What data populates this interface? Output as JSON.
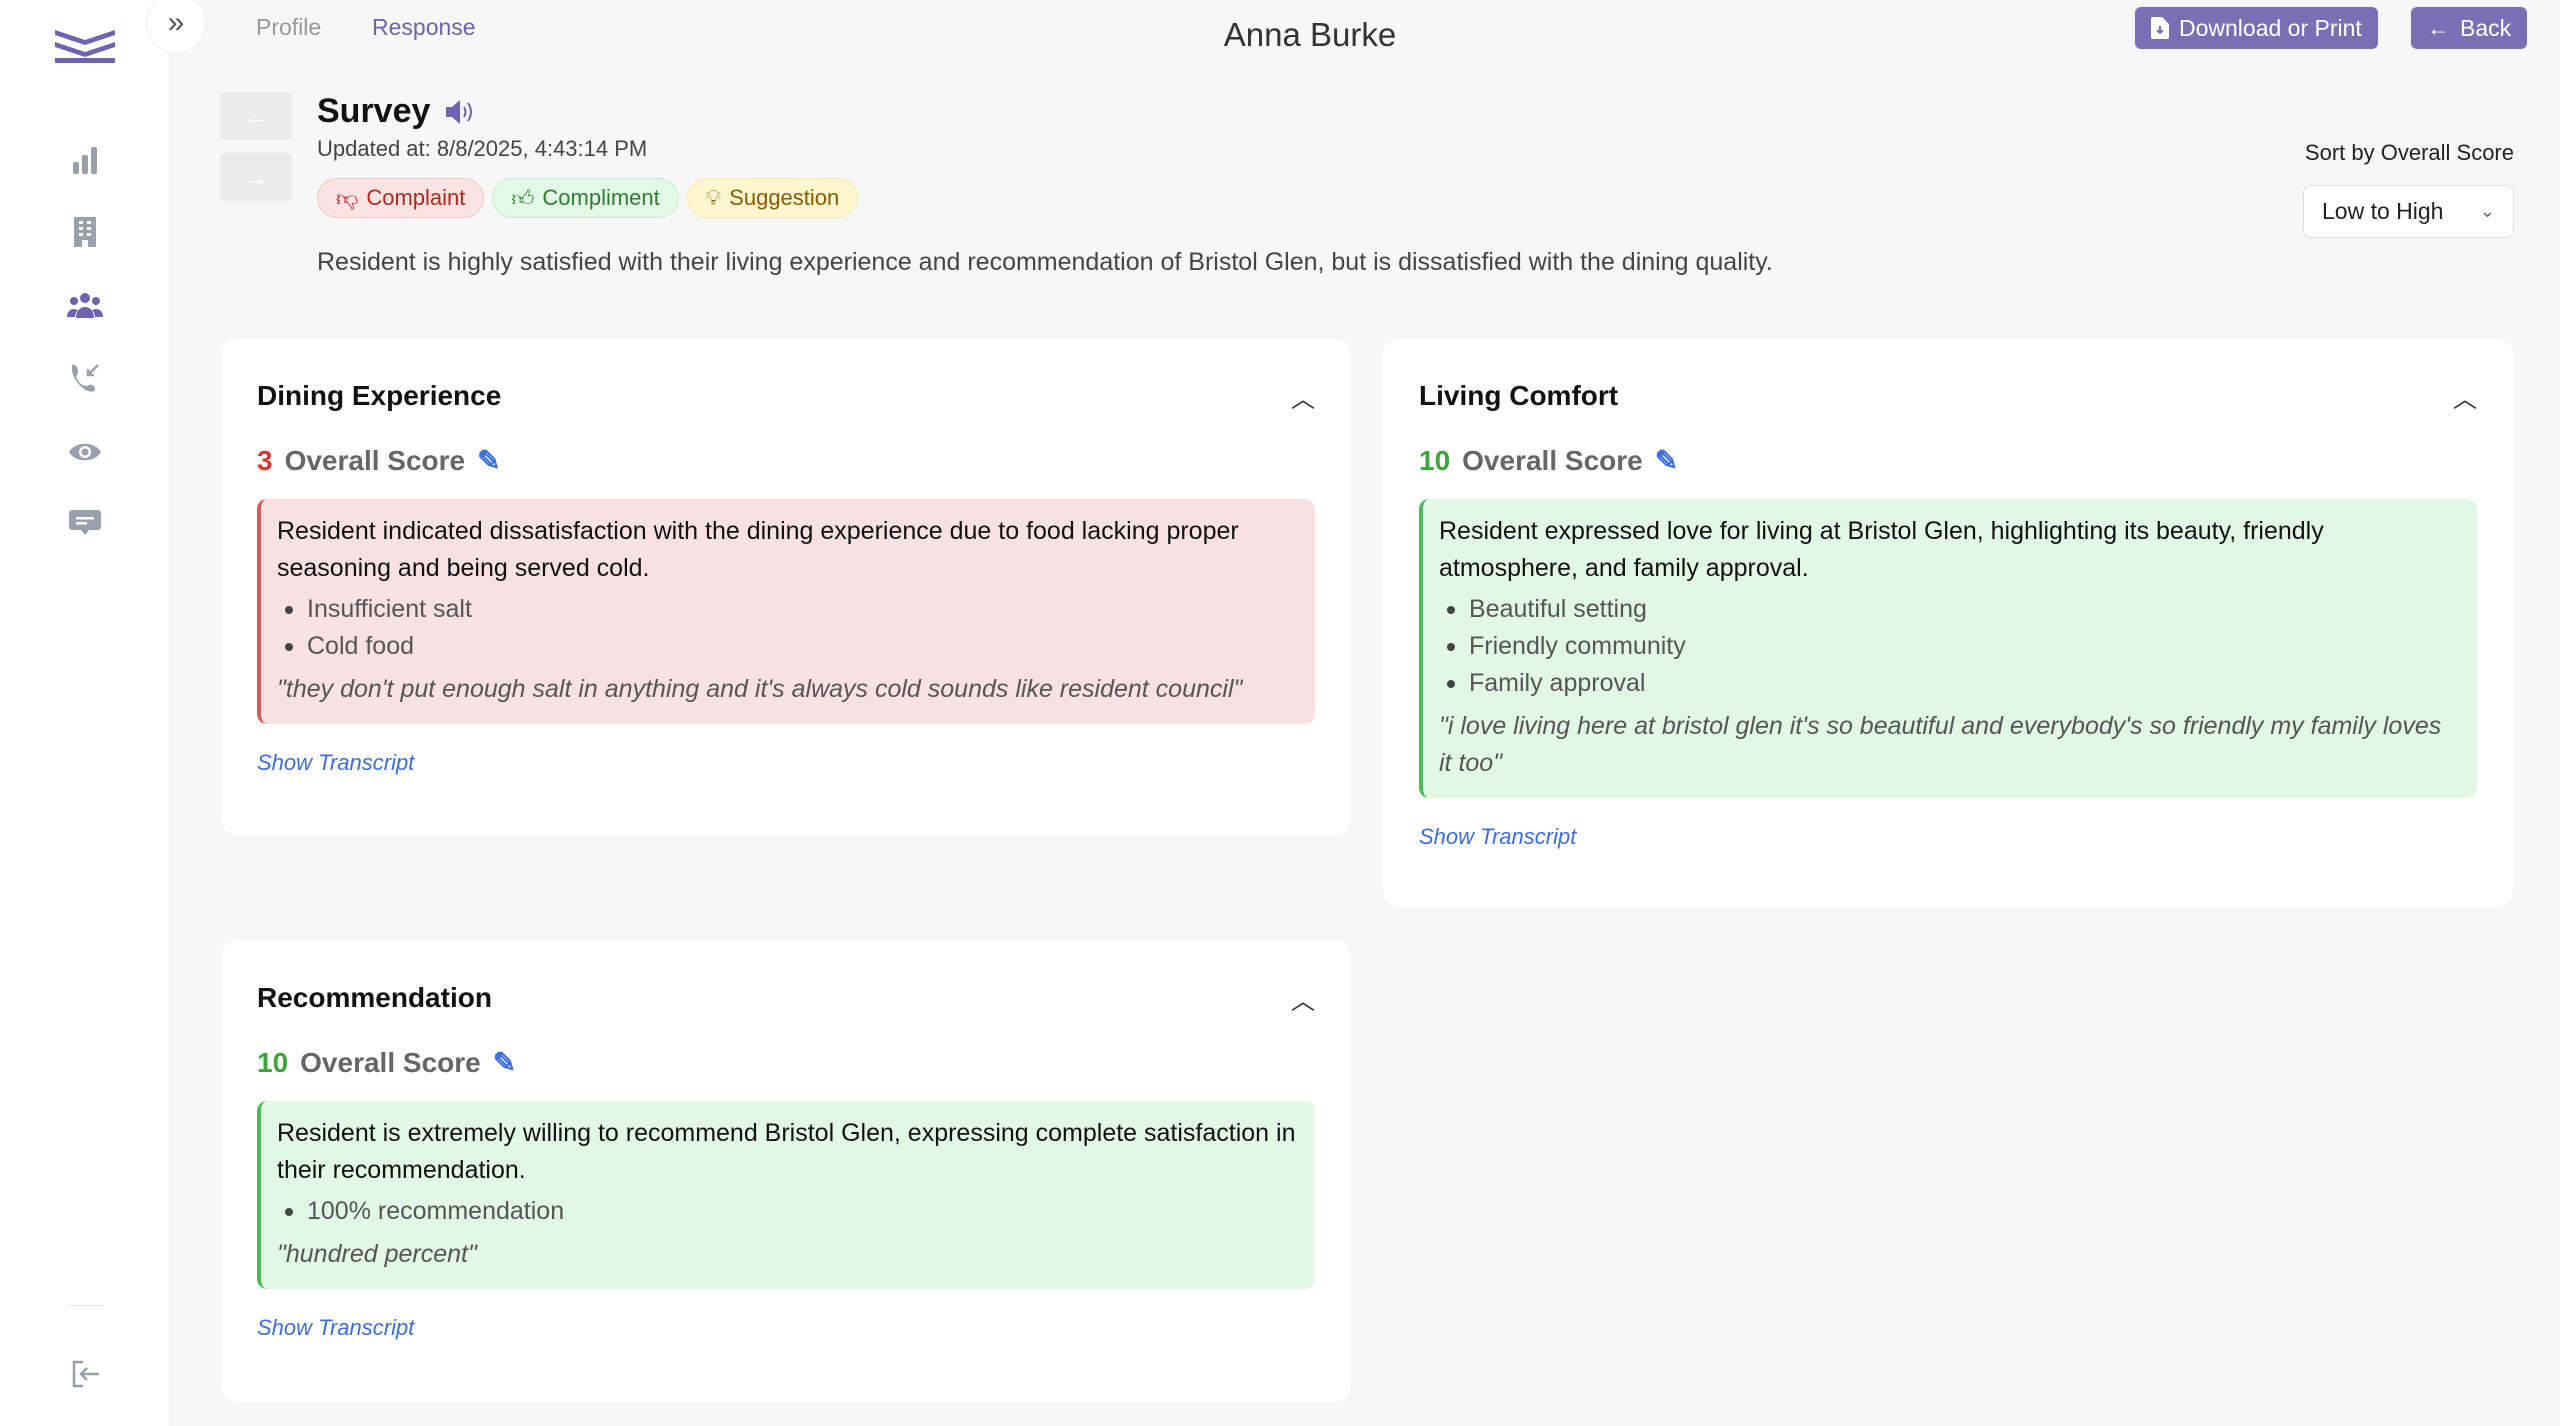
{
  "header": {
    "tabs": [
      "Profile",
      "Response"
    ],
    "active_tab": "Response",
    "title": "Anna Burke",
    "download_label": "Download or Print",
    "back_label": "Back"
  },
  "sidebar": {
    "items": [
      "analytics",
      "buildings",
      "residents",
      "calls",
      "views",
      "messages"
    ],
    "active": "residents",
    "logout": "logout"
  },
  "survey": {
    "title": "Survey",
    "updated": "Updated at: 8/8/2025, 4:43:14 PM",
    "tags": [
      {
        "label": "Complaint",
        "color": "#b3261e"
      },
      {
        "label": "Compliment",
        "color": "#2e7d32"
      },
      {
        "label": "Suggestion",
        "color": "#8a5a00"
      }
    ],
    "summary": "Resident is highly satisfied with their living experience and recommendation of Bristol Glen, but is dissatisfied with the dining quality."
  },
  "sort": {
    "label": "Sort by Overall Score",
    "value": "Low to High"
  },
  "cards": [
    {
      "title": "Dining Experience",
      "score": "3",
      "score_label": "Overall Score",
      "summary": "Resident indicated dissatisfaction with the dining experience due to food lacking proper seasoning and being served cold.",
      "points": [
        "Insufficient salt",
        "Cold food"
      ],
      "quote": "\"they don't put enough salt in anything and it's always cold sounds like resident council\"",
      "link": "Show Transcript"
    },
    {
      "title": "Living Comfort",
      "score": "10",
      "score_label": "Overall Score",
      "summary": "Resident expressed love for living at Bristol Glen, highlighting its beauty, friendly atmosphere, and family approval.",
      "points": [
        "Beautiful setting",
        "Friendly community",
        "Family approval"
      ],
      "quote": "\"i love living here at bristol glen it's so beautiful and everybody's so friendly my family loves it too\"",
      "link": "Show Transcript"
    },
    {
      "title": "Recommendation",
      "score": "10",
      "score_label": "Overall Score",
      "summary": "Resident is extremely willing to recommend Bristol Glen, expressing complete satisfaction in their recommendation.",
      "points": [
        "100% recommendation"
      ],
      "quote": "\"hundred percent\"",
      "link": "Show Transcript"
    }
  ]
}
